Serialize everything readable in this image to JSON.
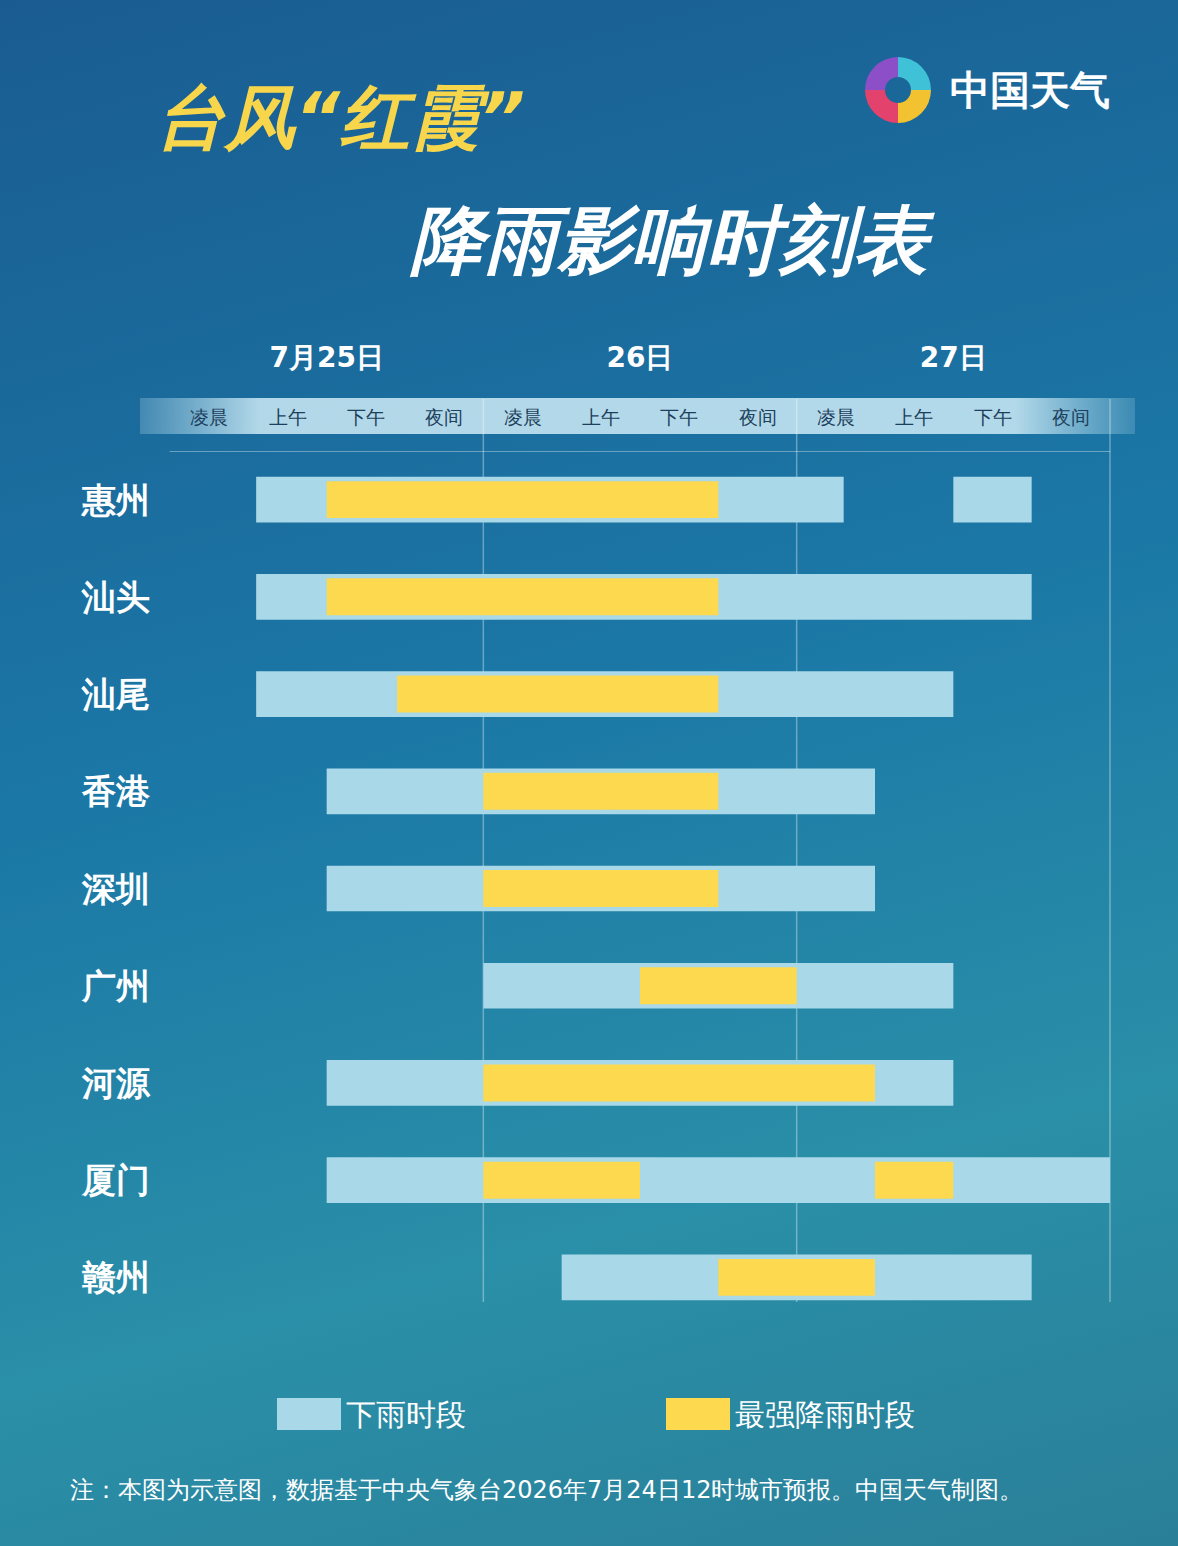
{
  "title": "台风“红霞”",
  "subtitle": "降雨影响时刻表",
  "brand": "中国天气",
  "note": "注：本图为示意图，数据基于中央气象台2026年7月24日12时城市预报。中国天气制图。",
  "chart_data": {
    "type": "gantt",
    "categories": [
      "惠州",
      "汕头",
      "汕尾",
      "香港",
      "深圳",
      "广州",
      "河源",
      "厦门",
      "赣州"
    ],
    "xlim": [
      0,
      12
    ],
    "xticks": [
      {
        "value": 0.5,
        "label": "凌晨"
      },
      {
        "value": 1.5,
        "label": "上午"
      },
      {
        "value": 2.5,
        "label": "下午"
      },
      {
        "value": 3.5,
        "label": "夜间"
      },
      {
        "value": 4.5,
        "label": "凌晨"
      },
      {
        "value": 5.5,
        "label": "上午"
      },
      {
        "value": 6.5,
        "label": "下午"
      },
      {
        "value": 7.5,
        "label": "夜间"
      },
      {
        "value": 8.5,
        "label": "凌晨"
      },
      {
        "value": 9.5,
        "label": "上午"
      },
      {
        "value": 10.5,
        "label": "下午"
      },
      {
        "value": 11.5,
        "label": "夜间"
      }
    ],
    "x_groups": [
      {
        "value": 2,
        "label": "7月25日"
      },
      {
        "value": 6,
        "label": "26日"
      },
      {
        "value": 10,
        "label": "27日"
      }
    ],
    "x_group_bounds": [
      4,
      8,
      12
    ],
    "series": [
      {
        "name": "下雨时段",
        "color": "#a9d8e8",
        "values": [
          [
            [
              1.1,
              8.6
            ],
            [
              10,
              11
            ]
          ],
          [
            [
              1.1,
              11
            ]
          ],
          [
            [
              1.1,
              10
            ]
          ],
          [
            [
              2,
              9
            ]
          ],
          [
            [
              2,
              9
            ]
          ],
          [
            [
              4,
              10
            ]
          ],
          [
            [
              2,
              10
            ]
          ],
          [
            [
              2,
              12
            ]
          ],
          [
            [
              5,
              11
            ]
          ]
        ]
      },
      {
        "name": "最强降雨时段",
        "color": "#fdd94f",
        "values": [
          [
            [
              2,
              7
            ]
          ],
          [
            [
              2,
              7
            ]
          ],
          [
            [
              2.9,
              7
            ]
          ],
          [
            [
              4,
              7
            ]
          ],
          [
            [
              4,
              7
            ]
          ],
          [
            [
              6,
              8
            ]
          ],
          [
            [
              4,
              9
            ]
          ],
          [
            [
              4,
              6
            ],
            [
              9,
              10
            ]
          ],
          [
            [
              7,
              9
            ]
          ]
        ]
      }
    ],
    "legend": "bottom"
  }
}
